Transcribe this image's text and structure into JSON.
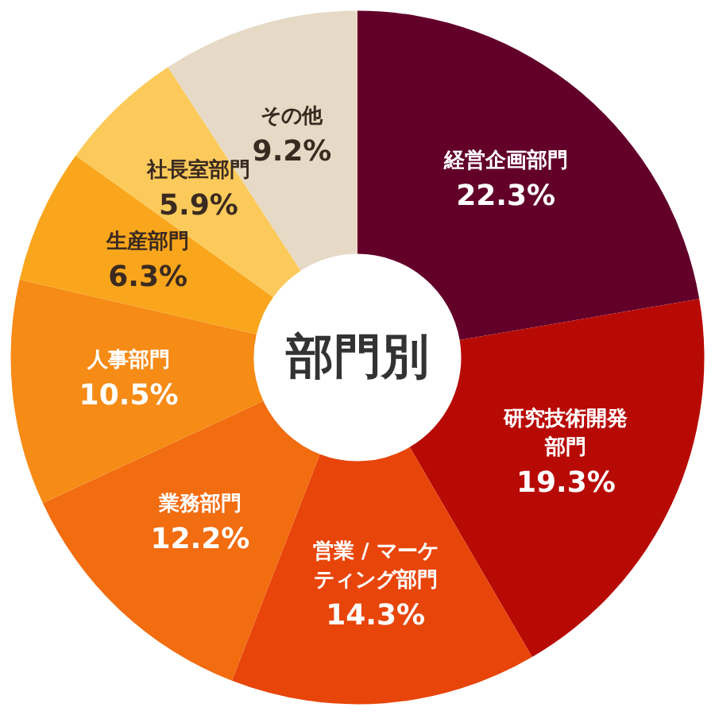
{
  "chart_data": {
    "type": "donut",
    "title": "部門別",
    "categories": [
      "経営企画部門",
      "研究技術開発部門",
      "営業 / マーケティング部門",
      "業務部門",
      "人事部門",
      "生産部門",
      "社長室部門",
      "その他"
    ],
    "values": [
      22.3,
      19.3,
      14.3,
      12.2,
      10.5,
      6.3,
      5.9,
      9.2
    ],
    "value_labels": [
      "22.3%",
      "19.3%",
      "14.3%",
      "12.2%",
      "10.5%",
      "6.3%",
      "5.9%",
      "9.2%"
    ],
    "colors": [
      "#62002a",
      "#b80a05",
      "#e8450a",
      "#f26c10",
      "#f68b16",
      "#f9a61c",
      "#fcca5a",
      "#e6d9c5"
    ],
    "legend": false
  }
}
